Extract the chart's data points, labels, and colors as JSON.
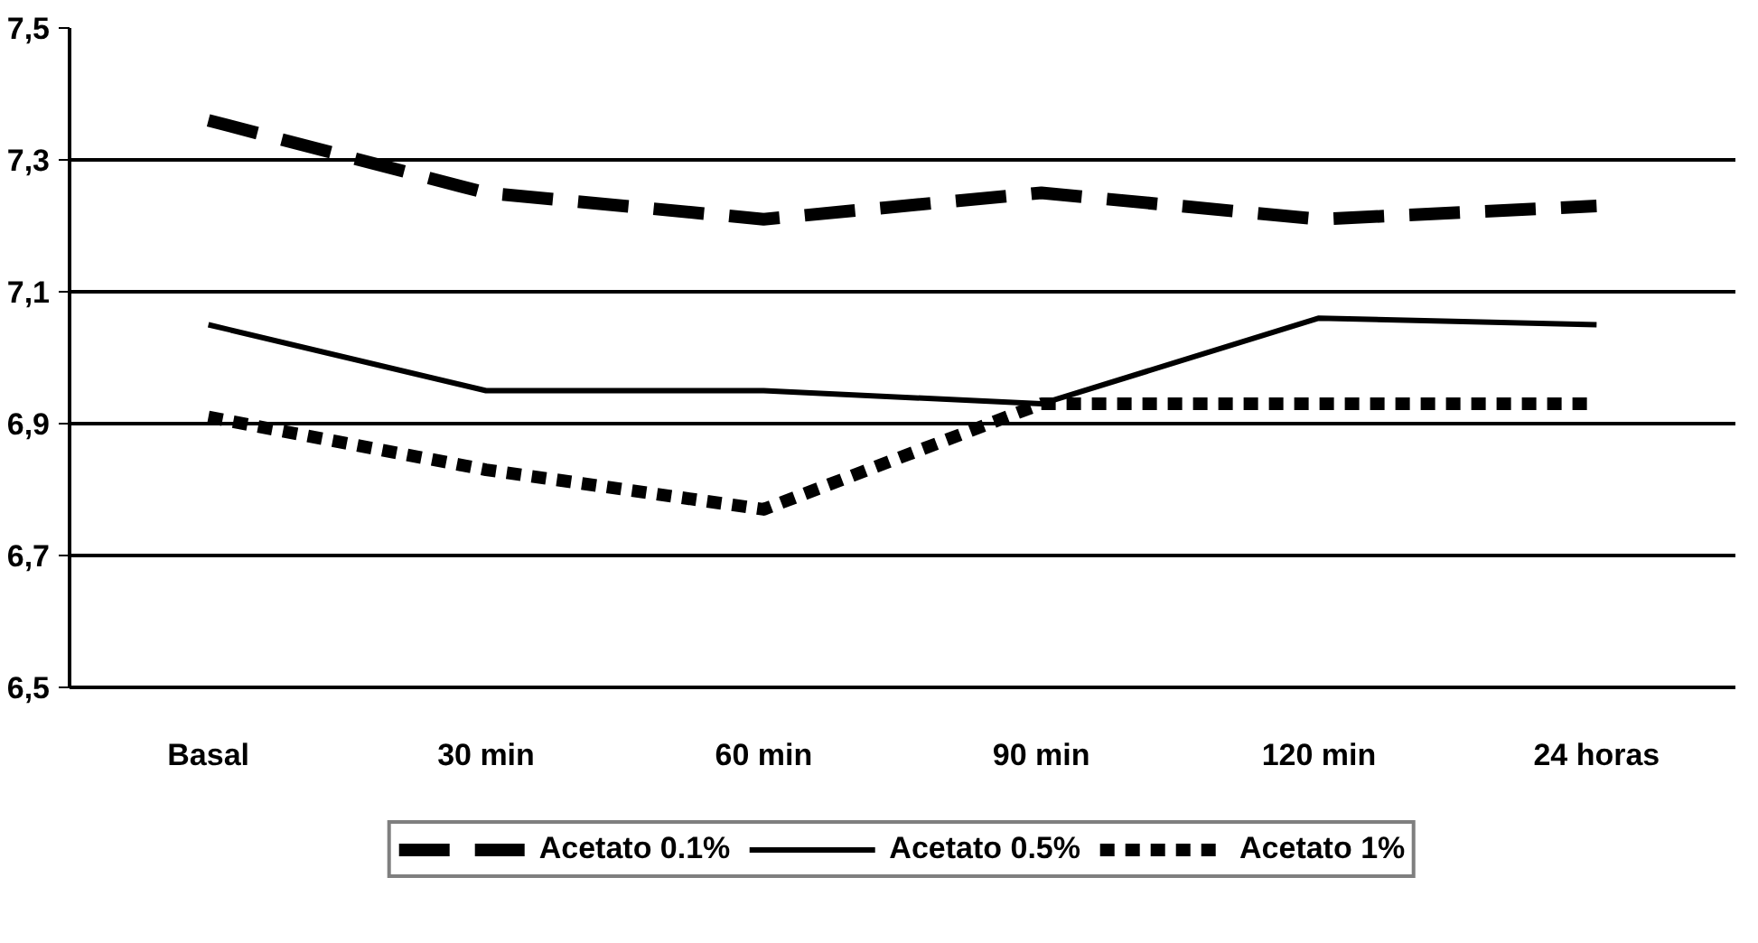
{
  "chart_data": {
    "type": "line",
    "categories": [
      "Basal",
      "30 min",
      "60 min",
      "90 min",
      "120 min",
      "24 horas"
    ],
    "series": [
      {
        "name": "Acetato 0.1%",
        "color": "#000000",
        "line_style": "dashed",
        "values": [
          7.36,
          7.25,
          7.21,
          7.25,
          7.21,
          7.23
        ]
      },
      {
        "name": "Acetato 0.5%",
        "color": "#000000",
        "line_style": "solid",
        "values": [
          7.05,
          6.95,
          6.95,
          6.93,
          7.06,
          7.05
        ]
      },
      {
        "name": "Acetato 1%",
        "color": "#000000",
        "line_style": "dotted",
        "values": [
          6.91,
          6.83,
          6.77,
          6.93,
          6.93,
          6.93
        ]
      }
    ],
    "ylim": [
      6.5,
      7.5
    ],
    "yticks": [
      {
        "value": 6.5,
        "label": "6,5"
      },
      {
        "value": 6.7,
        "label": "6,7"
      },
      {
        "value": 6.9,
        "label": "6,9"
      },
      {
        "value": 7.1,
        "label": "7,1"
      },
      {
        "value": 7.3,
        "label": "7,3"
      },
      {
        "value": 7.5,
        "label": "7,5"
      }
    ],
    "grid": "y",
    "legend": "bottom"
  }
}
